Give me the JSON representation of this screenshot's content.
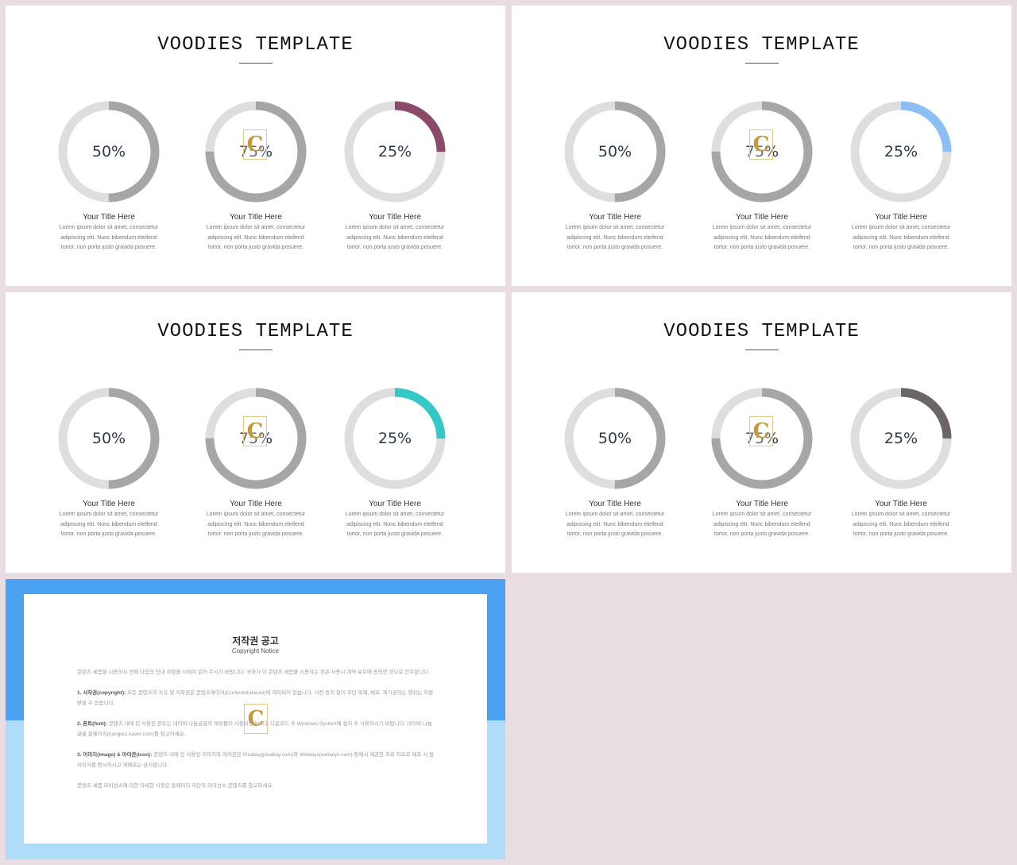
{
  "slides": [
    {
      "title": "VOODIES TEMPLATE",
      "accent_color": "#8c4a6b",
      "items": [
        {
          "value": "50%",
          "percent": 50,
          "title": "Your Title Here",
          "desc": [
            "Lorem ipsum dolor sit amet, consectetur",
            "adipiscing elit. Nunc bibendum eleifend",
            "tortor, non porta justo gravida posuere."
          ]
        },
        {
          "value": "75%",
          "percent": 75,
          "title": "Your Title Here",
          "desc": [
            "Lorem ipsum dolor sit amet, consectetur",
            "adipiscing elit. Nunc bibendum eleifend",
            "tortor, non porta justo gravida posuere."
          ]
        },
        {
          "value": "25%",
          "percent": 25,
          "title": "Your Title Here",
          "desc": [
            "Lorem ipsum dolor sit amet, consectetur",
            "adipiscing elit. Nunc bibendum eleifend",
            "tortor, non porta justo gravida posuere."
          ]
        }
      ]
    },
    {
      "title": "VOODIES TEMPLATE",
      "accent_color": "#8cc0f5",
      "items": [
        {
          "value": "50%",
          "percent": 50,
          "title": "Your Title Here",
          "desc": [
            "Lorem ipsum dolor sit amet, consectetur",
            "adipiscing elit. Nunc bibendum eleifend",
            "tortor, non porta justo gravida posuere."
          ]
        },
        {
          "value": "75%",
          "percent": 75,
          "title": "Your Title Here",
          "desc": [
            "Lorem ipsum dolor sit amet, consectetur",
            "adipiscing elit. Nunc bibendum eleifend",
            "tortor, non porta justo gravida posuere."
          ]
        },
        {
          "value": "25%",
          "percent": 25,
          "title": "Your Title Here",
          "desc": [
            "Lorem ipsum dolor sit amet, consectetur",
            "adipiscing elit. Nunc bibendum eleifend",
            "tortor, non porta justo gravida posuere."
          ]
        }
      ]
    },
    {
      "title": "VOODIES TEMPLATE",
      "accent_color": "#35c8c8",
      "items": [
        {
          "value": "50%",
          "percent": 50,
          "title": "Your Title Here",
          "desc": [
            "Lorem ipsum dolor sit amet, consectetur",
            "adipiscing elit. Nunc bibendum eleifend",
            "tortor, non porta justo gravida posuere."
          ]
        },
        {
          "value": "75%",
          "percent": 75,
          "title": "Your Title Here",
          "desc": [
            "Lorem ipsum dolor sit amet, consectetur",
            "adipiscing elit. Nunc bibendum eleifend",
            "tortor, non porta justo gravida posuere."
          ]
        },
        {
          "value": "25%",
          "percent": 25,
          "title": "Your Title Here",
          "desc": [
            "Lorem ipsum dolor sit amet, consectetur",
            "adipiscing elit. Nunc bibendum eleifend",
            "tortor, non porta justo gravida posuere."
          ]
        }
      ]
    },
    {
      "title": "VOODIES TEMPLATE",
      "accent_color": "#6b6565",
      "items": [
        {
          "value": "50%",
          "percent": 50,
          "title": "Your Title Here",
          "desc": [
            "Lorem ipsum dolor sit amet, consectetur",
            "adipiscing elit. Nunc bibendum eleifend",
            "tortor, non porta justo gravida posuere."
          ]
        },
        {
          "value": "75%",
          "percent": 75,
          "title": "Your Title Here",
          "desc": [
            "Lorem ipsum dolor sit amet, consectetur",
            "adipiscing elit. Nunc bibendum eleifend",
            "tortor, non porta justo gravida posuere."
          ]
        },
        {
          "value": "25%",
          "percent": 25,
          "title": "Your Title Here",
          "desc": [
            "Lorem ipsum dolor sit amet, consectetur",
            "adipiscing elit. Nunc bibendum eleifend",
            "tortor, non porta justo gravida posuere."
          ]
        }
      ]
    }
  ],
  "colors": {
    "background": "#e8dde2",
    "ring_track": "#dedede",
    "ring_fill": "#a6a6a6",
    "copyright_band_top": "#4aa2f0",
    "copyright_band_bottom": "#afdcf9"
  },
  "watermark": {
    "icon": "c-logo-icon",
    "glyph": "C"
  },
  "copyright": {
    "heading": "저작권 공고",
    "subheading": "Copyright Notice",
    "paragraphs": [
      {
        "lead": "",
        "text": "콘텐츠 세픔을 시용하시 전에 다음의 안내 사항을 시에이 읽어 주시기 바랍니다. 귀하가 이 콘텐츠 세픔을 시용하는 것은 사용시 계약 보호에 동의한 것으로 간주합니다."
      },
      {
        "lead": "1. 서작권(copyright):",
        "text": " 모든 콘텐츠의 소유 및 저작권은 콘텐츠메이커(Contentstokeout)에 재직되어 있습니다. 사전 동의 없이 무단 복제, 배포, 재가공하는 행위는 처벌 받을 수 있습니다."
      },
      {
        "lead": "2. 폰트(font):",
        "text": " 콘텐츠 내에 된 사용된 폰트는 네이버 나눔글꼴의 재작물이 사용되었습니다. 다운로드 후 Windows System에 설치 후 사용하시기 바랍니다. 네이버 나눔글꼴 홈페이지(hangeul.naver.com)를 참고하세요."
      },
      {
        "lead": "3. 이미지(image) & 아이콘(icon):",
        "text": " 콘텐츠 내에 된 사용된 이미지와 아이콘은 Pixabay(pixabay.com)와 Webalys(webalys.com) 등에서 제공한 무료 자료로 배포 시 원저작자를 명시하시고 재배포는 금지합니다."
      },
      {
        "lead": "",
        "text": "콘텐츠 세픔 라이선스에 대한 자세한 사항은 홈페이지 하단의 라이선스 콘텐츠를 참고하세요."
      }
    ]
  }
}
